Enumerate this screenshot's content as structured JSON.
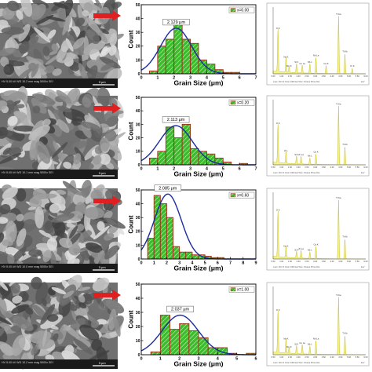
{
  "colors": {
    "bar_fill": "#3cbc2c",
    "bar_stroke": "#a42a1a",
    "fit_curve": "#1c2c9c",
    "arrow": "#e02020",
    "eds_fill": "#f4f08c",
    "eds_border": "#9a9a9a",
    "sem_base": "#707070"
  },
  "sem_panels": [
    {
      "info_line": "HV 5.00 kV   WD 10.2 mm   mag 5000x   SEI",
      "scale_label": "5 μm"
    },
    {
      "info_line": "HV 5.00 kV   WD 10.1 mm   mag 5000x   SEI",
      "scale_label": "5 μm"
    },
    {
      "info_line": "HV 5.00 kV   WD 10.0 mm   mag 5000x   SEI",
      "scale_label": "5 μm"
    },
    {
      "info_line": "HV 5.00 kV   WD 10.2 mm   mag 5000x   SEI",
      "scale_label": "5 μm"
    }
  ],
  "chart_data": [
    {
      "type": "bar",
      "xlabel": "Grain Size (μm)",
      "ylabel": "Count",
      "xlim": [
        0,
        7
      ],
      "ylim": [
        0,
        50
      ],
      "xticks": [
        0,
        1,
        2,
        3,
        4,
        5,
        6,
        7
      ],
      "yticks": [
        0,
        10,
        20,
        30,
        40,
        50
      ],
      "bin_width": 0.5,
      "bin_starts": [
        0.5,
        1.0,
        1.5,
        2.0,
        2.5,
        3.0,
        3.5,
        4.0,
        4.5,
        5.0,
        5.5,
        6.0
      ],
      "values": [
        2,
        20,
        25,
        37,
        25,
        22,
        10,
        7,
        3,
        1,
        1,
        0
      ],
      "fit": {
        "peak": 2.129,
        "amplitude": 33,
        "sigma": 0.95
      },
      "annotation": "2.129 μm",
      "legend": "x=0.00",
      "legend_position": "top-right"
    },
    {
      "type": "bar",
      "xlabel": "Grain Size (μm)",
      "ylabel": "Count",
      "xlim": [
        0,
        7
      ],
      "ylim": [
        0,
        50
      ],
      "xticks": [
        0,
        1,
        2,
        3,
        4,
        5,
        6,
        7
      ],
      "yticks": [
        0,
        10,
        20,
        30,
        40,
        50
      ],
      "bin_width": 0.5,
      "bin_starts": [
        0.5,
        1.0,
        1.5,
        2.0,
        2.5,
        3.0,
        3.5,
        4.0,
        4.5,
        5.0,
        5.5,
        6.0
      ],
      "values": [
        5,
        10,
        28,
        20,
        30,
        12,
        10,
        8,
        5,
        2,
        0,
        1
      ],
      "fit": {
        "peak": 2.113,
        "amplitude": 29,
        "sigma": 1.0
      },
      "annotation": "2.113 μm",
      "legend": "x=0.20",
      "legend_position": "top-right"
    },
    {
      "type": "bar",
      "xlabel": "Grain Size (μm)",
      "ylabel": "Count",
      "xlim": [
        0,
        9
      ],
      "ylim": [
        0,
        50
      ],
      "xticks": [
        0,
        1,
        2,
        3,
        4,
        5,
        6,
        7,
        8,
        9
      ],
      "yticks": [
        0,
        10,
        20,
        30,
        40,
        50
      ],
      "bin_width": 0.5,
      "bin_starts": [
        0.5,
        1.0,
        1.5,
        2.0,
        2.5,
        3.0,
        3.5,
        4.0,
        4.5,
        5.0,
        5.5,
        6.0
      ],
      "values": [
        15,
        46,
        40,
        30,
        9,
        5,
        5,
        3,
        3,
        2,
        1,
        1
      ],
      "fit": {
        "peak": 2.085,
        "amplitude": 47,
        "sigma": 1.05
      },
      "annotation": "2.085 μm",
      "legend": "x=0.60",
      "legend_position": "top-right"
    },
    {
      "type": "bar",
      "xlabel": "Grain Size (μm)",
      "ylabel": "Count",
      "xlim": [
        0,
        6
      ],
      "ylim": [
        0,
        50
      ],
      "xticks": [
        0,
        1,
        2,
        3,
        4,
        5,
        6
      ],
      "yticks": [
        0,
        10,
        20,
        30,
        40,
        50
      ],
      "bin_width": 0.5,
      "bin_starts": [
        0.5,
        1.0,
        1.5,
        2.0,
        2.5,
        3.0,
        3.5,
        4.0,
        4.5,
        5.0,
        5.5
      ],
      "values": [
        2,
        28,
        18,
        22,
        17,
        12,
        5,
        5,
        1,
        0,
        1
      ],
      "fit": {
        "peak": 2.037,
        "amplitude": 28,
        "sigma": 0.95
      },
      "annotation": "2.037 μm",
      "legend": "x=1.00",
      "legend_position": "top-right"
    }
  ],
  "eds_panels": [
    {
      "x_ticks": [
        "0.50",
        "1.00",
        "1.50",
        "2.00",
        "2.50",
        "3.00",
        "3.50",
        "4.00",
        "4.50",
        "5.00",
        "5.50",
        "6.00"
      ],
      "footer": "Lsec: 30.0   0 Cnts   0.000 keV   Det: Octane Prime   Det",
      "x_unit": "keV",
      "peaks": [
        {
          "kev": 0.52,
          "height": 0.65,
          "label": "O K"
        },
        {
          "kev": 1.05,
          "height": 0.22,
          "label": "Na K"
        },
        {
          "kev": 1.25,
          "height": 0.08,
          "label": "Mg K"
        },
        {
          "kev": 1.74,
          "height": 0.14,
          "label": "Si K"
        },
        {
          "kev": 2.12,
          "height": 0.12,
          "label": "Cu La"
        },
        {
          "kev": 2.62,
          "height": 0.14,
          "label": "Nb L"
        },
        {
          "kev": 3.02,
          "height": 0.24,
          "label": "Nb La"
        },
        {
          "kev": 3.69,
          "height": 0.12,
          "label": "Ca K"
        },
        {
          "kev": 4.51,
          "height": 0.86,
          "label": "Ti Ka"
        },
        {
          "kev": 4.93,
          "height": 0.3,
          "label": "Ti Kb"
        },
        {
          "kev": 5.41,
          "height": 0.08,
          "label": "Cr K"
        }
      ]
    },
    {
      "x_ticks": [
        "0.50",
        "1.00",
        "1.50",
        "2.00",
        "2.50",
        "3.00",
        "3.50",
        "4.00",
        "4.50",
        "5.00",
        "5.50",
        "6.00"
      ],
      "footer": "Lsec: 30.0   0 Cnts   0.000 keV   Det: Octane Prime   Det",
      "x_unit": "keV",
      "peaks": [
        {
          "kev": 0.52,
          "height": 0.6,
          "label": "O K"
        },
        {
          "kev": 1.05,
          "height": 0.18,
          "label": "Zr L"
        },
        {
          "kev": 1.74,
          "height": 0.12,
          "label": "Si K"
        },
        {
          "kev": 2.04,
          "height": 0.12,
          "label": "Zr La"
        },
        {
          "kev": 2.62,
          "height": 0.1,
          "label": "Nb L"
        },
        {
          "kev": 3.02,
          "height": 0.16,
          "label": "Ca K"
        },
        {
          "kev": 4.51,
          "height": 0.9,
          "label": "Ti Ka"
        },
        {
          "kev": 4.93,
          "height": 0.28,
          "label": "Ti Kb"
        }
      ]
    },
    {
      "x_ticks": [
        "0.50",
        "1.00",
        "1.50",
        "2.00",
        "2.50",
        "3.00",
        "3.50",
        "4.00",
        "4.50",
        "5.00",
        "5.50",
        "6.00"
      ],
      "footer": "Lsec: 30.0   0 Cnts   0.000 keV   Det: Octane Prime   Det",
      "x_unit": "keV",
      "peaks": [
        {
          "kev": 0.52,
          "height": 0.7,
          "label": "O K"
        },
        {
          "kev": 1.05,
          "height": 0.16,
          "label": "Na K"
        },
        {
          "kev": 1.74,
          "height": 0.1,
          "label": "Si K"
        },
        {
          "kev": 2.04,
          "height": 0.12,
          "label": "Zr La"
        },
        {
          "kev": 2.62,
          "height": 0.1,
          "label": "Nb L"
        },
        {
          "kev": 3.02,
          "height": 0.18,
          "label": "Ca K"
        },
        {
          "kev": 4.51,
          "height": 0.88,
          "label": "Ti Ka"
        },
        {
          "kev": 4.93,
          "height": 0.3,
          "label": "Ti Kb"
        }
      ]
    },
    {
      "x_ticks": [
        "0.50",
        "1.00",
        "1.50",
        "2.00",
        "2.50",
        "3.00",
        "3.50",
        "4.00",
        "4.50",
        "5.00",
        "5.50",
        "6.00"
      ],
      "footer": "Lsec: 30.0   0 Cnts   0.000 keV   Det: Octane Prime   Det",
      "x_unit": "keV",
      "peaks": [
        {
          "kev": 0.52,
          "height": 0.62,
          "label": "O K"
        },
        {
          "kev": 1.05,
          "height": 0.2,
          "label": "Na K"
        },
        {
          "kev": 1.25,
          "height": 0.08,
          "label": "Mg K"
        },
        {
          "kev": 1.74,
          "height": 0.12,
          "label": "Si K"
        },
        {
          "kev": 2.12,
          "height": 0.14,
          "label": "Cu La"
        },
        {
          "kev": 2.62,
          "height": 0.12,
          "label": "Nb L"
        },
        {
          "kev": 3.02,
          "height": 0.2,
          "label": "Nb La"
        },
        {
          "kev": 4.51,
          "height": 0.84,
          "label": "Ti Ka"
        },
        {
          "kev": 4.93,
          "height": 0.28,
          "label": "Ti Kb"
        }
      ]
    }
  ]
}
